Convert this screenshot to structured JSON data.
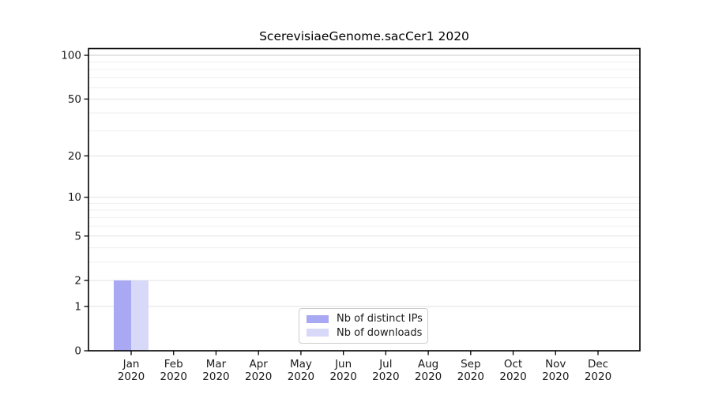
{
  "chart_data": {
    "type": "bar",
    "title": "ScerevisiaeGenome.sacCer1 2020",
    "categories": [
      "Jan",
      "Feb",
      "Mar",
      "Apr",
      "May",
      "Jun",
      "Jul",
      "Aug",
      "Sep",
      "Oct",
      "Nov",
      "Dec"
    ],
    "xticklabels": [
      [
        "Jan",
        "2020"
      ],
      [
        "Feb",
        "2020"
      ],
      [
        "Mar",
        "2020"
      ],
      [
        "Apr",
        "2020"
      ],
      [
        "May",
        "2020"
      ],
      [
        "Jun",
        "2020"
      ],
      [
        "Jul",
        "2020"
      ],
      [
        "Aug",
        "2020"
      ],
      [
        "Sep",
        "2020"
      ],
      [
        "Oct",
        "2020"
      ],
      [
        "Nov",
        "2020"
      ],
      [
        "Dec",
        "2020"
      ]
    ],
    "series": [
      {
        "name": "Nb of distinct IPs",
        "color": "#a8a8f3",
        "values": [
          2,
          0,
          0,
          0,
          0,
          0,
          0,
          0,
          0,
          0,
          0,
          0
        ]
      },
      {
        "name": "Nb of downloads",
        "color": "#d8d8f8",
        "values": [
          2,
          0,
          0,
          0,
          0,
          0,
          0,
          0,
          0,
          0,
          0,
          0
        ]
      }
    ],
    "yticks": [
      0,
      1,
      2,
      5,
      10,
      20,
      50,
      100
    ],
    "yticks_minor": [
      3,
      4,
      6,
      7,
      8,
      9,
      30,
      40,
      60,
      70,
      80,
      90
    ],
    "scale": "log(1+x)",
    "ylim": [
      0,
      111
    ],
    "xlabel": "",
    "ylabel": "",
    "grid": "horizontal",
    "legend_position": "lower center",
    "colors": {
      "spine": "#000000",
      "grid_major_top": "#c9c9c9",
      "grid_major": "#e2e2e2",
      "grid_minor": "#efefef",
      "tick_label": "#1a1a1a",
      "background": "#ffffff"
    }
  }
}
